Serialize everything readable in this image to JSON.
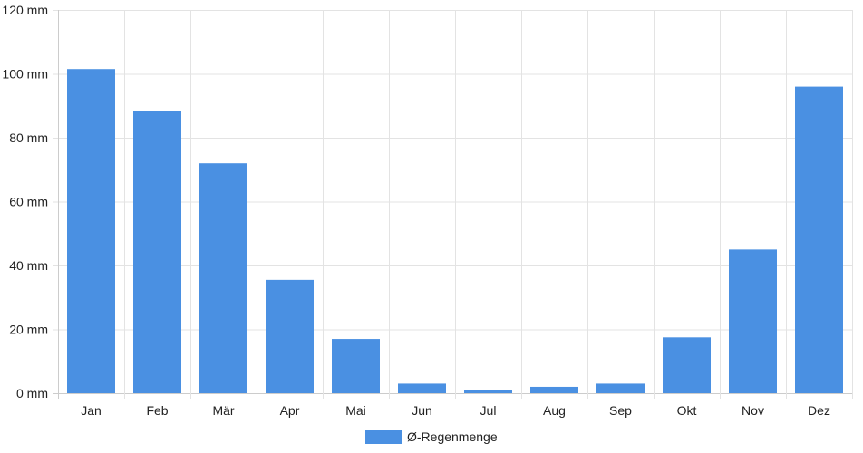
{
  "chart_data": {
    "type": "bar",
    "categories": [
      "Jan",
      "Feb",
      "Mär",
      "Apr",
      "Mai",
      "Jun",
      "Jul",
      "Aug",
      "Sep",
      "Okt",
      "Nov",
      "Dez"
    ],
    "series": [
      {
        "name": "Ø-Regenmenge",
        "values": [
          101.5,
          88.5,
          72,
          35.5,
          17,
          3,
          1,
          2,
          3,
          17.5,
          45,
          96
        ],
        "color": "#4a90e2"
      }
    ],
    "y_unit": "mm",
    "y_ticks": [
      "0 mm",
      "20 mm",
      "40 mm",
      "60 mm",
      "80 mm",
      "100 mm",
      "120 mm"
    ],
    "ylim": [
      0,
      120
    ],
    "grid": true,
    "legend_position": "bottom-center",
    "colors": {
      "bar": "#4a90e2",
      "grid": "#e3e3e3",
      "axis": "#cccccc",
      "text": "#222222"
    }
  }
}
